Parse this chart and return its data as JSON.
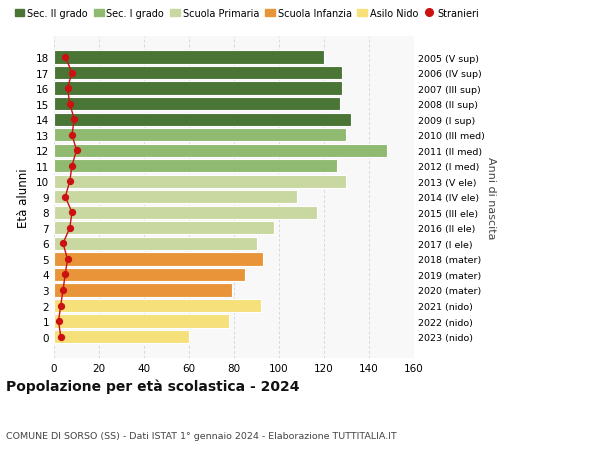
{
  "ages": [
    0,
    1,
    2,
    3,
    4,
    5,
    6,
    7,
    8,
    9,
    10,
    11,
    12,
    13,
    14,
    15,
    16,
    17,
    18
  ],
  "values": [
    60,
    78,
    92,
    79,
    85,
    93,
    90,
    98,
    117,
    108,
    130,
    126,
    148,
    130,
    132,
    127,
    128,
    128,
    120
  ],
  "stranieri": [
    3,
    2,
    3,
    4,
    5,
    6,
    4,
    7,
    8,
    5,
    7,
    8,
    10,
    8,
    9,
    7,
    6,
    8,
    5
  ],
  "right_labels": [
    "2023 (nido)",
    "2022 (nido)",
    "2021 (nido)",
    "2020 (mater)",
    "2019 (mater)",
    "2018 (mater)",
    "2017 (I ele)",
    "2016 (II ele)",
    "2015 (III ele)",
    "2014 (IV ele)",
    "2013 (V ele)",
    "2012 (I med)",
    "2011 (II med)",
    "2010 (III med)",
    "2009 (I sup)",
    "2008 (II sup)",
    "2007 (III sup)",
    "2006 (IV sup)",
    "2005 (V sup)"
  ],
  "bar_colors": [
    "#f5e07a",
    "#f5e07a",
    "#f5e07a",
    "#e8953a",
    "#e8953a",
    "#e8953a",
    "#c8d8a0",
    "#c8d8a0",
    "#c8d8a0",
    "#c8d8a0",
    "#c8d8a0",
    "#8fba70",
    "#8fba70",
    "#8fba70",
    "#4a7535",
    "#4a7535",
    "#4a7535",
    "#4a7535",
    "#4a7535"
  ],
  "legend_labels": [
    "Sec. II grado",
    "Sec. I grado",
    "Scuola Primaria",
    "Scuola Infanzia",
    "Asilo Nido",
    "Stranieri"
  ],
  "legend_colors": [
    "#4a7535",
    "#8fba70",
    "#c8d8a0",
    "#e8953a",
    "#f5e07a",
    "#cc1111"
  ],
  "ylabel": "Età alunni",
  "right_ylabel": "Anni di nascita",
  "title": "Popolazione per età scolastica - 2024",
  "subtitle": "COMUNE DI SORSO (SS) - Dati ISTAT 1° gennaio 2024 - Elaborazione TUTTITALIA.IT",
  "xlim": [
    0,
    160
  ],
  "xticks": [
    0,
    20,
    40,
    60,
    80,
    100,
    120,
    140,
    160
  ],
  "stranieri_color": "#cc1111",
  "bg_color": "#f8f8f8"
}
